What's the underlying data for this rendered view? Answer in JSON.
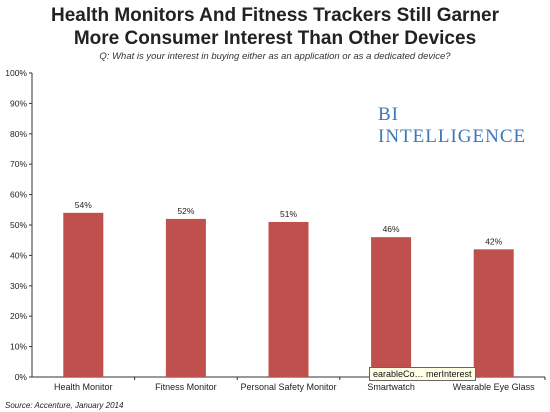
{
  "title_line1": "Health Monitors And Fitness Trackers Still Garner",
  "title_line2": "More Consumer Interest Than Other Devices",
  "subtitle": "Q: What is your interest in buying either as an application or as a dedicated device?",
  "brand": "BI INTELLIGENCE",
  "source": "Source: Accenture, January 2014",
  "tooltip": "earableCo… merInterest",
  "colors": {
    "bar": "#c0504d",
    "axis": "#333333",
    "brand": "#3a78b8"
  },
  "chart_data": {
    "type": "bar",
    "categories": [
      "Health Monitor",
      "Fitness Monitor",
      "Personal Safety Monitor",
      "Smartwatch",
      "Wearable Eye Glass"
    ],
    "values": [
      54,
      52,
      51,
      46,
      42
    ],
    "data_labels": [
      "54%",
      "52%",
      "51%",
      "46%",
      "42%"
    ],
    "ylim": [
      0,
      100
    ],
    "yticks": [
      "0%",
      "10%",
      "20%",
      "30%",
      "40%",
      "50%",
      "60%",
      "70%",
      "80%",
      "90%",
      "100%"
    ],
    "grid": false,
    "legend": "none"
  }
}
